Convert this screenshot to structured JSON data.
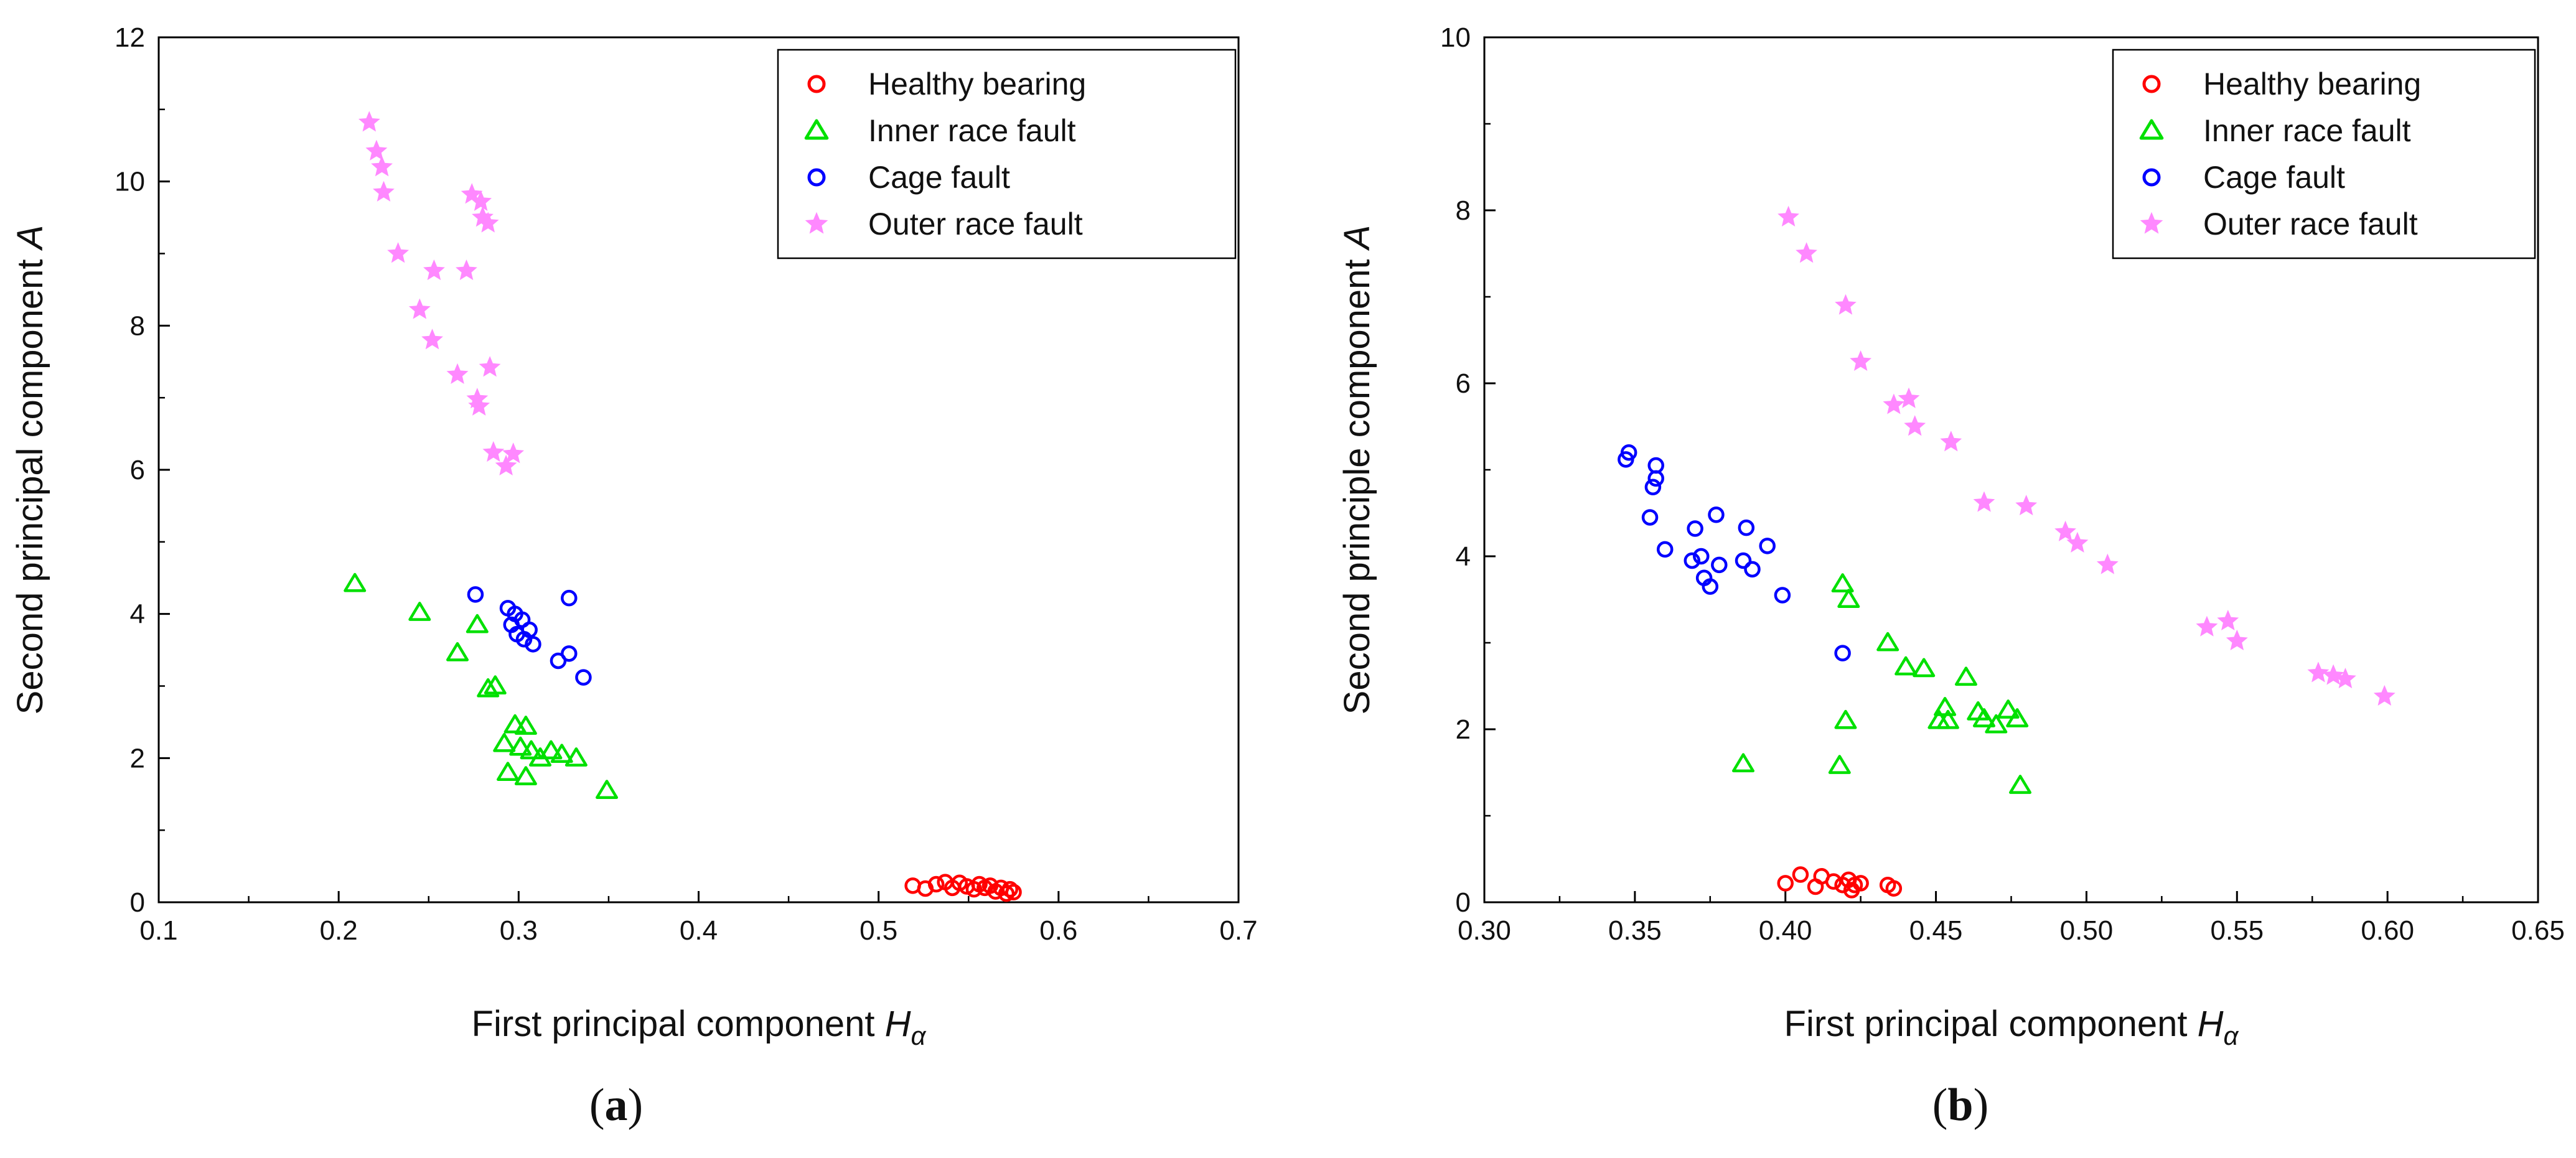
{
  "chart_data": [
    {
      "type": "scatter",
      "panel_label": "a",
      "xlabel": "First principal component",
      "xlabel_symbol": "H",
      "xlabel_sub": "α",
      "ylabel": "Second principal component",
      "ylabel_symbol": "A",
      "xlim": [
        0.1,
        0.7
      ],
      "ylim": [
        0,
        12
      ],
      "xticks": [
        "0.1",
        "0.2",
        "0.3",
        "0.4",
        "0.5",
        "0.6",
        "0.7"
      ],
      "yticks": [
        "0",
        "2",
        "4",
        "6",
        "8",
        "10",
        "12"
      ],
      "legend_position": "top-right",
      "series": [
        {
          "name": "Healthy bearing",
          "marker": "circle",
          "color": "#ff0000",
          "points": [
            [
              0.519,
              0.23
            ],
            [
              0.526,
              0.19
            ],
            [
              0.532,
              0.25
            ],
            [
              0.537,
              0.28
            ],
            [
              0.541,
              0.2
            ],
            [
              0.545,
              0.27
            ],
            [
              0.549,
              0.22
            ],
            [
              0.553,
              0.18
            ],
            [
              0.556,
              0.25
            ],
            [
              0.559,
              0.2
            ],
            [
              0.562,
              0.23
            ],
            [
              0.565,
              0.15
            ],
            [
              0.568,
              0.2
            ],
            [
              0.571,
              0.12
            ],
            [
              0.573,
              0.18
            ],
            [
              0.575,
              0.14
            ]
          ]
        },
        {
          "name": "Inner race fault",
          "marker": "triangle",
          "color": "#00e000",
          "points": [
            [
              0.209,
              4.42
            ],
            [
              0.245,
              4.02
            ],
            [
              0.277,
              3.85
            ],
            [
              0.266,
              3.46
            ],
            [
              0.283,
              2.96
            ],
            [
              0.287,
              3.0
            ],
            [
              0.298,
              2.46
            ],
            [
              0.304,
              2.44
            ],
            [
              0.292,
              2.2
            ],
            [
              0.301,
              2.15
            ],
            [
              0.307,
              2.1
            ],
            [
              0.312,
              2.0
            ],
            [
              0.318,
              2.1
            ],
            [
              0.324,
              2.05
            ],
            [
              0.332,
              2.0
            ],
            [
              0.294,
              1.8
            ],
            [
              0.304,
              1.74
            ],
            [
              0.349,
              1.55
            ]
          ]
        },
        {
          "name": "Cage fault",
          "marker": "circle",
          "color": "#0000ff",
          "points": [
            [
              0.276,
              4.27
            ],
            [
              0.294,
              4.08
            ],
            [
              0.298,
              4.0
            ],
            [
              0.302,
              3.92
            ],
            [
              0.296,
              3.85
            ],
            [
              0.306,
              3.78
            ],
            [
              0.299,
              3.72
            ],
            [
              0.303,
              3.65
            ],
            [
              0.308,
              3.58
            ],
            [
              0.328,
              4.22
            ],
            [
              0.328,
              3.45
            ],
            [
              0.322,
              3.35
            ],
            [
              0.336,
              3.12
            ]
          ]
        },
        {
          "name": "Outer race fault",
          "marker": "star",
          "color": "#ff88ff",
          "points": [
            [
              0.217,
              10.82
            ],
            [
              0.221,
              10.42
            ],
            [
              0.224,
              10.2
            ],
            [
              0.225,
              9.85
            ],
            [
              0.233,
              9.0
            ],
            [
              0.274,
              9.82
            ],
            [
              0.279,
              9.72
            ],
            [
              0.28,
              9.5
            ],
            [
              0.283,
              9.42
            ],
            [
              0.253,
              8.76
            ],
            [
              0.271,
              8.76
            ],
            [
              0.245,
              8.22
            ],
            [
              0.252,
              7.8
            ],
            [
              0.284,
              7.42
            ],
            [
              0.266,
              7.32
            ],
            [
              0.277,
              6.98
            ],
            [
              0.278,
              6.88
            ],
            [
              0.286,
              6.24
            ],
            [
              0.297,
              6.22
            ],
            [
              0.293,
              6.05
            ]
          ]
        }
      ]
    },
    {
      "type": "scatter",
      "panel_label": "b",
      "xlabel": "First principal component",
      "xlabel_symbol": "H",
      "xlabel_sub": "α",
      "ylabel": "Second principle component",
      "ylabel_symbol": "A",
      "xlim": [
        0.3,
        0.65
      ],
      "ylim": [
        0,
        10
      ],
      "xticks": [
        "0.30",
        "0.35",
        "0.40",
        "0.45",
        "0.50",
        "0.55",
        "0.60",
        "0.65"
      ],
      "yticks": [
        "0",
        "2",
        "4",
        "6",
        "8",
        "10"
      ],
      "legend_position": "top-right",
      "series": [
        {
          "name": "Healthy bearing",
          "marker": "circle",
          "color": "#ff0000",
          "points": [
            [
              0.4,
              0.22
            ],
            [
              0.405,
              0.32
            ],
            [
              0.41,
              0.18
            ],
            [
              0.412,
              0.3
            ],
            [
              0.416,
              0.24
            ],
            [
              0.419,
              0.2
            ],
            [
              0.421,
              0.26
            ],
            [
              0.422,
              0.14
            ],
            [
              0.423,
              0.2
            ],
            [
              0.425,
              0.22
            ],
            [
              0.434,
              0.2
            ],
            [
              0.436,
              0.16
            ]
          ]
        },
        {
          "name": "Inner race fault",
          "marker": "triangle",
          "color": "#00e000",
          "points": [
            [
              0.419,
              3.68
            ],
            [
              0.421,
              3.5
            ],
            [
              0.434,
              3.0
            ],
            [
              0.44,
              2.72
            ],
            [
              0.446,
              2.7
            ],
            [
              0.453,
              2.25
            ],
            [
              0.451,
              2.1
            ],
            [
              0.454,
              2.1
            ],
            [
              0.46,
              2.6
            ],
            [
              0.464,
              2.2
            ],
            [
              0.466,
              2.12
            ],
            [
              0.47,
              2.05
            ],
            [
              0.474,
              2.22
            ],
            [
              0.477,
              2.12
            ],
            [
              0.42,
              2.1
            ],
            [
              0.386,
              1.6
            ],
            [
              0.418,
              1.58
            ],
            [
              0.478,
              1.35
            ]
          ]
        },
        {
          "name": "Cage fault",
          "marker": "circle",
          "color": "#0000ff",
          "points": [
            [
              0.347,
              5.12
            ],
            [
              0.348,
              5.2
            ],
            [
              0.357,
              5.05
            ],
            [
              0.357,
              4.9
            ],
            [
              0.356,
              4.8
            ],
            [
              0.355,
              4.45
            ],
            [
              0.377,
              4.48
            ],
            [
              0.37,
              4.32
            ],
            [
              0.387,
              4.33
            ],
            [
              0.394,
              4.12
            ],
            [
              0.36,
              4.08
            ],
            [
              0.372,
              4.0
            ],
            [
              0.369,
              3.95
            ],
            [
              0.378,
              3.9
            ],
            [
              0.386,
              3.95
            ],
            [
              0.389,
              3.85
            ],
            [
              0.373,
              3.75
            ],
            [
              0.375,
              3.65
            ],
            [
              0.399,
              3.55
            ],
            [
              0.419,
              2.88
            ]
          ]
        },
        {
          "name": "Outer race fault",
          "marker": "star",
          "color": "#ff88ff",
          "points": [
            [
              0.401,
              7.92
            ],
            [
              0.407,
              7.5
            ],
            [
              0.42,
              6.9
            ],
            [
              0.425,
              6.25
            ],
            [
              0.436,
              5.75
            ],
            [
              0.441,
              5.82
            ],
            [
              0.443,
              5.5
            ],
            [
              0.455,
              5.32
            ],
            [
              0.466,
              4.62
            ],
            [
              0.48,
              4.58
            ],
            [
              0.493,
              4.28
            ],
            [
              0.497,
              4.15
            ],
            [
              0.507,
              3.9
            ],
            [
              0.54,
              3.18
            ],
            [
              0.547,
              3.25
            ],
            [
              0.55,
              3.02
            ],
            [
              0.577,
              2.65
            ],
            [
              0.582,
              2.62
            ],
            [
              0.586,
              2.58
            ],
            [
              0.599,
              2.38
            ]
          ]
        }
      ]
    }
  ]
}
